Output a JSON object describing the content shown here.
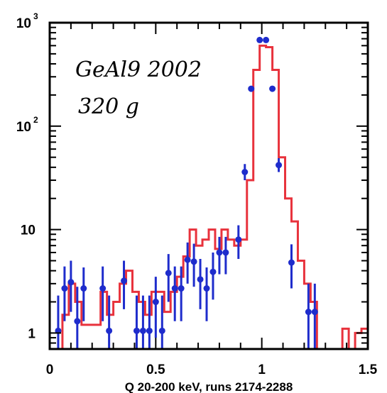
{
  "chart_data": {
    "type": "histogram",
    "xlabel": "Q 20-200 keV, runs 2174-2288",
    "ylabel": "",
    "xlim": [
      0,
      1.5
    ],
    "ylim": [
      0.7,
      1000
    ],
    "y_scale": "log",
    "grid": false,
    "annotations": [
      "GeAl9 2002",
      "320 g"
    ],
    "x_ticks": [
      {
        "value": 0,
        "label": "0"
      },
      {
        "value": 0.5,
        "label": "0.5"
      },
      {
        "value": 1,
        "label": "1"
      },
      {
        "value": 1.5,
        "label": "1.5"
      }
    ],
    "y_ticks": [
      {
        "value": 1,
        "base": "1",
        "exp": ""
      },
      {
        "value": 10,
        "base": "10",
        "exp": ""
      },
      {
        "value": 100,
        "base": "10",
        "exp": "2"
      },
      {
        "value": 1000,
        "base": "10",
        "exp": "3"
      }
    ],
    "series": [
      {
        "kind": "step",
        "color": "#e8323c",
        "edges": [
          0.03,
          0.06,
          0.09,
          0.12,
          0.15,
          0.18,
          0.21,
          0.24,
          0.27,
          0.3,
          0.33,
          0.36,
          0.39,
          0.42,
          0.45,
          0.48,
          0.51,
          0.54,
          0.57,
          0.6,
          0.63,
          0.66,
          0.69,
          0.72,
          0.75,
          0.78,
          0.81,
          0.84,
          0.87,
          0.9,
          0.93,
          0.96,
          0.99,
          1.02,
          1.05,
          1.08,
          1.11,
          1.14,
          1.17,
          1.2,
          1.23,
          1.26,
          1.29,
          1.32,
          1.35,
          1.38,
          1.41,
          1.44,
          1.47,
          1.5
        ],
        "values": [
          0.7,
          1.5,
          3,
          2,
          1.2,
          1.2,
          1.2,
          2.5,
          1.5,
          2,
          3,
          4,
          2.5,
          2,
          1.5,
          2.5,
          2.5,
          1.6,
          2.5,
          3.5,
          5.5,
          10,
          7,
          8,
          10,
          6.5,
          10,
          8,
          7,
          8,
          30,
          350,
          600,
          580,
          350,
          50,
          20,
          12,
          5,
          3,
          2,
          0.7,
          0.7,
          0.7,
          0.7,
          1.1,
          0.7,
          1,
          1.1
        ]
      },
      {
        "kind": "points_with_errors",
        "color": "#1e2ccc",
        "points": [
          {
            "x": 0.04,
            "y": 1.05,
            "lo": 0.7,
            "hi": 2.3
          },
          {
            "x": 0.07,
            "y": 2.7,
            "lo": 1.3,
            "hi": 4.4
          },
          {
            "x": 0.1,
            "y": 3.1,
            "lo": 1.6,
            "hi": 5.0
          },
          {
            "x": 0.13,
            "y": 1.3,
            "lo": 0.7,
            "hi": 2.8
          },
          {
            "x": 0.16,
            "y": 2.7,
            "lo": 1.3,
            "hi": 4.3
          },
          {
            "x": 0.25,
            "y": 2.7,
            "lo": 1.3,
            "hi": 4.4
          },
          {
            "x": 0.28,
            "y": 1.05,
            "lo": 0.7,
            "hi": 2.3
          },
          {
            "x": 0.35,
            "y": 3.2,
            "lo": 1.7,
            "hi": 5.0
          },
          {
            "x": 0.41,
            "y": 1.05,
            "lo": 0.7,
            "hi": 2.3
          },
          {
            "x": 0.44,
            "y": 1.05,
            "lo": 0.7,
            "hi": 2.3
          },
          {
            "x": 0.47,
            "y": 1.05,
            "lo": 0.7,
            "hi": 2.3
          },
          {
            "x": 0.5,
            "y": 2.0,
            "lo": 0.9,
            "hi": 3.5
          },
          {
            "x": 0.53,
            "y": 1.05,
            "lo": 0.7,
            "hi": 2.3
          },
          {
            "x": 0.56,
            "y": 3.8,
            "lo": 2.0,
            "hi": 5.8
          },
          {
            "x": 0.59,
            "y": 2.7,
            "lo": 1.3,
            "hi": 4.4
          },
          {
            "x": 0.62,
            "y": 2.7,
            "lo": 1.3,
            "hi": 4.4
          },
          {
            "x": 0.65,
            "y": 5.1,
            "lo": 3.0,
            "hi": 7.5
          },
          {
            "x": 0.68,
            "y": 4.9,
            "lo": 2.8,
            "hi": 7.3
          },
          {
            "x": 0.71,
            "y": 3.3,
            "lo": 1.7,
            "hi": 5.2
          },
          {
            "x": 0.74,
            "y": 2.7,
            "lo": 1.3,
            "hi": 4.3
          },
          {
            "x": 0.77,
            "y": 3.9,
            "lo": 2.1,
            "hi": 6.0
          },
          {
            "x": 0.8,
            "y": 6.0,
            "lo": 3.7,
            "hi": 8.5
          },
          {
            "x": 0.83,
            "y": 6.0,
            "lo": 3.7,
            "hi": 8.5
          },
          {
            "x": 0.89,
            "y": 8.0,
            "lo": 5.2,
            "hi": 11
          },
          {
            "x": 0.92,
            "y": 36,
            "lo": 30,
            "hi": 43
          },
          {
            "x": 0.95,
            "y": 230,
            "lo": 215,
            "hi": 245
          },
          {
            "x": 0.99,
            "y": 680,
            "lo": 655,
            "hi": 705
          },
          {
            "x": 1.02,
            "y": 680,
            "lo": 655,
            "hi": 705
          },
          {
            "x": 1.05,
            "y": 230,
            "lo": 215,
            "hi": 245
          },
          {
            "x": 1.08,
            "y": 42,
            "lo": 36,
            "hi": 49
          },
          {
            "x": 1.14,
            "y": 4.8,
            "lo": 2.7,
            "hi": 7.2
          },
          {
            "x": 1.22,
            "y": 1.6,
            "lo": 0.7,
            "hi": 3.0
          },
          {
            "x": 1.25,
            "y": 1.6,
            "lo": 0.7,
            "hi": 3.0
          }
        ]
      }
    ]
  }
}
